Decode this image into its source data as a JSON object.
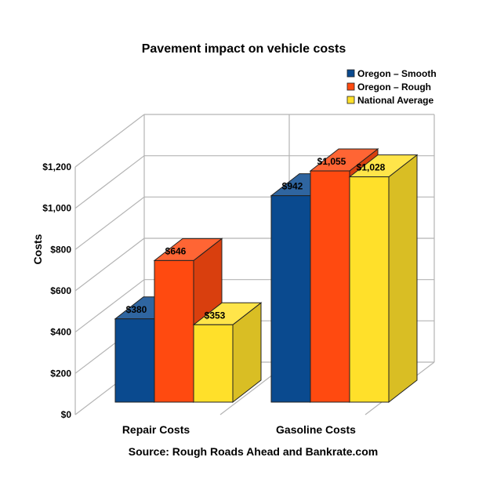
{
  "chart_data": {
    "type": "bar",
    "title": "Pavement impact on vehicle costs",
    "ylabel": "Costs",
    "xlabel": "",
    "categories": [
      "Repair Costs",
      "Gasoline Costs"
    ],
    "series": [
      {
        "name": "Oregon – Smooth",
        "values": [
          380,
          942
        ],
        "labels": [
          "$380",
          "$942"
        ],
        "color": "#0a4a8f"
      },
      {
        "name": "Oregon – Rough",
        "values": [
          646,
          1055
        ],
        "labels": [
          "$646",
          "$1,055"
        ],
        "color": "#ff4a10"
      },
      {
        "name": "National Average",
        "values": [
          353,
          1028
        ],
        "labels": [
          "$353",
          "$1,028"
        ],
        "color": "#ffe02a"
      }
    ],
    "ylim": [
      0,
      1200
    ],
    "yticks": [
      0,
      200,
      400,
      600,
      800,
      1000,
      1200
    ],
    "ytick_labels": [
      "$0",
      "$200",
      "$400",
      "$600",
      "$800",
      "$1,000",
      "$1,200"
    ],
    "grid": true,
    "legend_position": "top-right",
    "three_d": true,
    "source": "Source: Rough Roads Ahead and Bankrate.com"
  }
}
